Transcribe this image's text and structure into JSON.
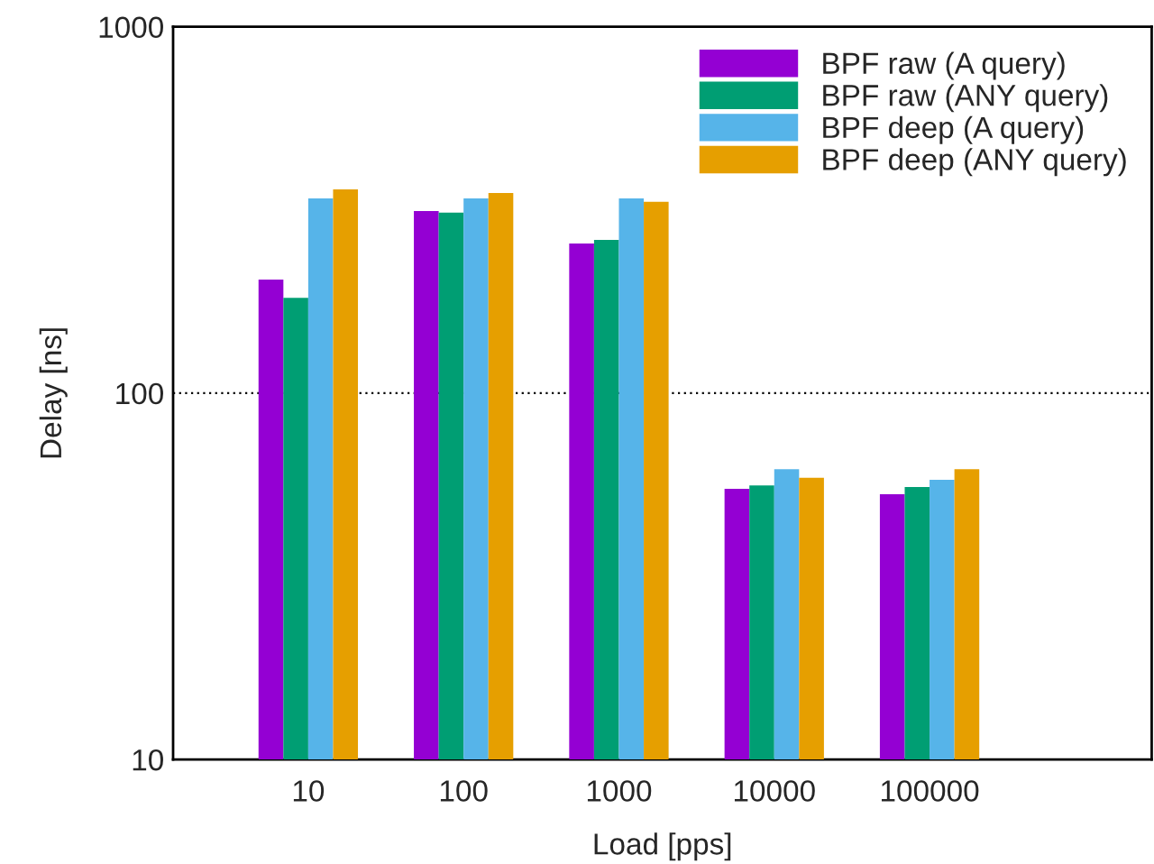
{
  "chart_data": {
    "type": "bar",
    "xlabel": "Load [pps]",
    "ylabel": "Delay [ns]",
    "categories": [
      "10",
      "100",
      "1000",
      "10000",
      "100000"
    ],
    "series": [
      {
        "name": "BPF raw (A query)",
        "color": "#9400d3",
        "values": [
          204,
          314,
          256,
          54.8,
          53
        ]
      },
      {
        "name": "BPF raw (ANY query)",
        "color": "#009e73",
        "values": [
          182,
          311,
          262,
          56,
          55.4
        ]
      },
      {
        "name": "BPF deep (A query)",
        "color": "#56b4e9",
        "values": [
          340,
          340,
          340,
          62,
          58
        ]
      },
      {
        "name": "BPF deep (ANY query)",
        "color": "#e69f00",
        "values": [
          360,
          352,
          333,
          58.7,
          62
        ]
      }
    ],
    "log": "y",
    "ylim": [
      10,
      1000
    ],
    "yticks": [
      10,
      100,
      1000
    ],
    "grid": "y",
    "legend": "top right"
  }
}
